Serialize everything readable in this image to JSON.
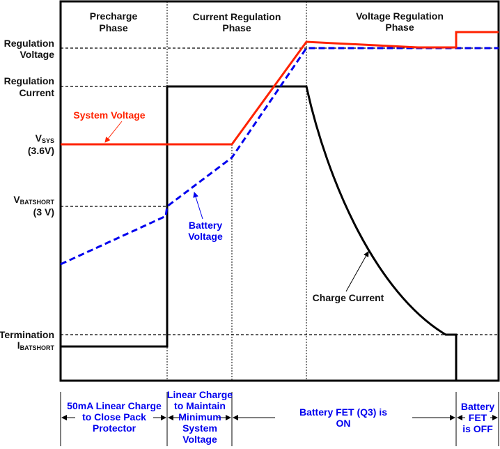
{
  "phases": [
    {
      "line1": "Precharge",
      "line2": "Phase"
    },
    {
      "line1": "Current Regulation",
      "line2": "Phase"
    },
    {
      "line1": "Voltage Regulation",
      "line2": "Phase"
    }
  ],
  "y_labels": {
    "reg_voltage": [
      "Regulation",
      "Voltage"
    ],
    "reg_current": [
      "Regulation",
      "Current"
    ],
    "vsys": {
      "main": "V",
      "sub": "SYS",
      "value": "(3.6V)"
    },
    "vbatshort": {
      "main": "V",
      "sub": "BATSHORT",
      "value": "(3 V)"
    },
    "termination": "Termination",
    "ibatshort": {
      "main": "I",
      "sub": "BATSHORT"
    }
  },
  "curves": {
    "system_voltage": {
      "label": "System Voltage",
      "color": "#ff2200"
    },
    "battery_voltage": {
      "label": [
        "Battery",
        "Voltage"
      ],
      "color": "#0000ee"
    },
    "charge_current": {
      "label": "Charge Current",
      "color": "#000000"
    }
  },
  "bottom": [
    [
      "50mA Linear Charge",
      "to Close Pack",
      "Protector"
    ],
    [
      "Linear Charge",
      "to Maintain",
      "Minimum",
      "System",
      "Voltage"
    ],
    [
      "Battery FET (Q3) is",
      "ON"
    ],
    [
      "Battery",
      "FET",
      "is OFF"
    ]
  ]
}
